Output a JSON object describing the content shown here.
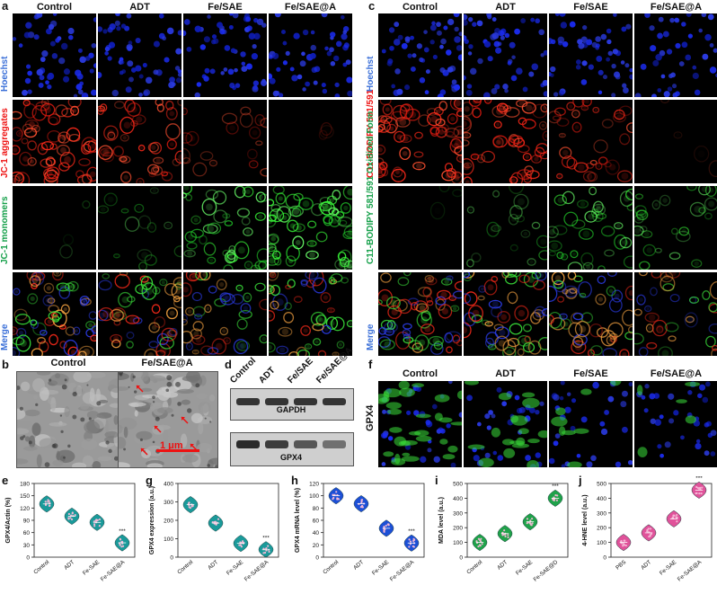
{
  "panels": {
    "a": "a",
    "b": "b",
    "c": "c",
    "d": "d",
    "e": "e",
    "f": "f",
    "g": "g",
    "h": "h",
    "i": "i",
    "j": "j"
  },
  "col_headers": [
    "Control",
    "ADT",
    "Fe/SAE",
    "Fe/SAE@A"
  ],
  "panel_a_rows": [
    {
      "label": "Hoechst",
      "color": "#3a6fd8",
      "stain": "blue"
    },
    {
      "label": "JC-1 aggregates",
      "color": "#e11",
      "stain": "red"
    },
    {
      "label": "JC-1 monomers",
      "color": "#15a04a",
      "stain": "green"
    },
    {
      "label": "Merge",
      "color": "#3a6fd8",
      "stain": "merge"
    }
  ],
  "panel_c_rows": [
    {
      "label": "Hoechst",
      "color": "#3a6fd8"
    },
    {
      "label": "C11-BODIPY 581/591",
      "color": "#e11"
    },
    {
      "label": "C11-BODIPY 581/591 Oxidized Form",
      "color": "#15a04a"
    },
    {
      "label": "Merge",
      "color": "#3a6fd8"
    }
  ],
  "panel_b": {
    "headers": [
      "Control",
      "Fe/SAE@A"
    ],
    "scalebar": "1 μm"
  },
  "panel_d": {
    "columns": [
      "Control",
      "ADT",
      "Fe/SAE",
      "Fe/SAE@A"
    ],
    "bands": [
      "GAPDH",
      "GPX4"
    ]
  },
  "panel_f": {
    "headers": [
      "Control",
      "ADT",
      "Fe/SAE",
      "Fe/SAE@A"
    ],
    "side_label": "GPX4"
  },
  "colors": {
    "teal": "#1a9a9a",
    "blue": "#1c4fd6",
    "green": "#1fa24a",
    "pink": "#e0529a",
    "violin_point": "#f2a8c8"
  },
  "chart_data": [
    {
      "id": "e",
      "type": "violin",
      "categories": [
        "Control",
        "ADT",
        "Fe-SAE",
        "Fe-SAE@A"
      ],
      "values": [
        130,
        100,
        85,
        35
      ],
      "ylabel": "GPX4/Actin (%)",
      "ylim": [
        0,
        180
      ],
      "yticks": [
        0,
        30,
        60,
        90,
        120,
        150,
        180
      ],
      "significance": [
        "",
        "",
        "",
        "***"
      ],
      "color": "#1a9a9a"
    },
    {
      "id": "g",
      "type": "violin",
      "categories": [
        "Control",
        "ADT",
        "Fe-SAE",
        "Fe-SAE@A"
      ],
      "values": [
        285,
        185,
        75,
        40
      ],
      "ylabel": "GPX4 expression (a.u.)",
      "ylim": [
        0,
        400
      ],
      "yticks": [
        0,
        100,
        200,
        300,
        400
      ],
      "significance": [
        "",
        "",
        "",
        "***"
      ],
      "color": "#1a9a9a"
    },
    {
      "id": "h",
      "type": "violin",
      "categories": [
        "Control",
        "ADT",
        "Fe-SAE",
        "Fe-SAE@A"
      ],
      "values": [
        100,
        87,
        47,
        23
      ],
      "ylabel": "GPX4 mRNA level (%)",
      "ylim": [
        0,
        120
      ],
      "yticks": [
        0,
        20,
        40,
        60,
        80,
        100,
        120
      ],
      "significance": [
        "",
        "",
        "",
        "***"
      ],
      "color": "#1c4fd6"
    },
    {
      "id": "i",
      "type": "violin",
      "categories": [
        "Control",
        "ADT",
        "Fe-SAE",
        "Fe-SAE@D"
      ],
      "values": [
        100,
        160,
        240,
        400
      ],
      "ylabel": "MDA level (a.u.)",
      "ylim": [
        0,
        500
      ],
      "yticks": [
        0,
        100,
        200,
        300,
        400,
        500
      ],
      "significance": [
        "",
        "",
        "",
        "***"
      ],
      "color": "#1fa24a"
    },
    {
      "id": "j",
      "type": "violin",
      "categories": [
        "PBS",
        "ADT",
        "Fe-SAE",
        "Fe-SAE@A"
      ],
      "values": [
        100,
        165,
        260,
        455
      ],
      "ylabel": "4-HNE level (a.u.)",
      "ylim": [
        0,
        500
      ],
      "yticks": [
        0,
        100,
        200,
        300,
        400,
        500
      ],
      "significance": [
        "",
        "",
        "",
        "***"
      ],
      "color": "#e0529a"
    }
  ]
}
